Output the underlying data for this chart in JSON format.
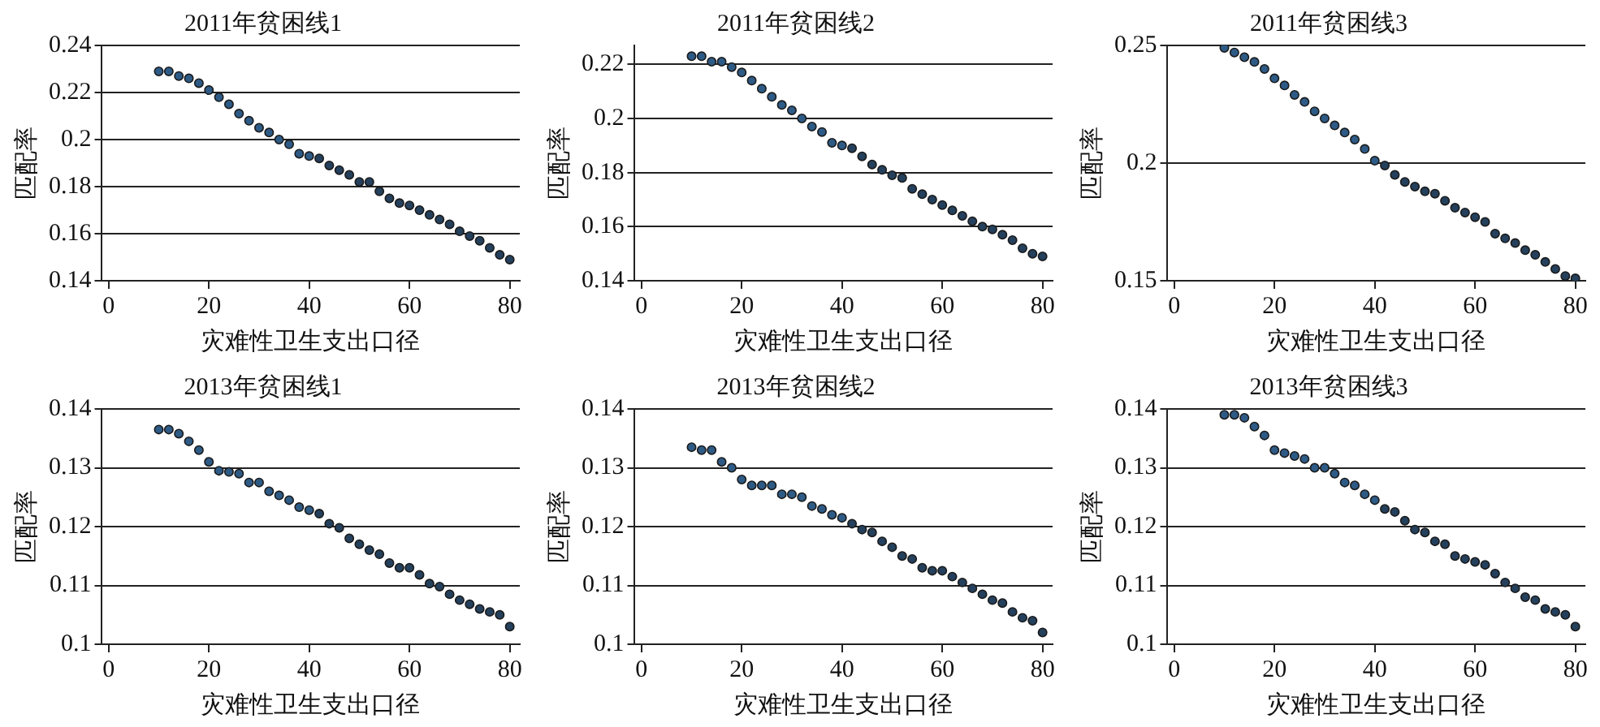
{
  "chart_data": [
    {
      "type": "scatter",
      "title": "2011年贫困线1",
      "xlabel": "灾难性卫生支出口径",
      "ylabel": "匹配率",
      "xlim": [
        -1.5,
        82
      ],
      "xticks": [
        0,
        20,
        40,
        60,
        80
      ],
      "ylim": [
        0.14,
        0.24
      ],
      "yticks": [
        0.14,
        0.16,
        0.18,
        0.2,
        0.22,
        0.24
      ],
      "grid": "y",
      "marker": "circle",
      "series": [
        {
          "color": "#2e5b86",
          "x": [
            10,
            12,
            14,
            16,
            18,
            20,
            22,
            24,
            26,
            28,
            30,
            32,
            34,
            36,
            38,
            40
          ],
          "values": [
            0.229,
            0.229,
            0.227,
            0.226,
            0.224,
            0.221,
            0.218,
            0.215,
            0.211,
            0.208,
            0.205,
            0.203,
            0.2,
            0.198,
            0.194,
            0.193
          ]
        },
        {
          "color": "#24405c",
          "x": [
            42,
            44,
            46,
            48,
            50,
            52,
            54,
            56,
            58,
            60,
            62,
            64,
            66,
            68,
            70,
            72,
            74,
            76,
            78,
            80
          ],
          "values": [
            0.192,
            0.189,
            0.187,
            0.185,
            0.182,
            0.182,
            0.178,
            0.175,
            0.173,
            0.172,
            0.17,
            0.168,
            0.166,
            0.164,
            0.161,
            0.159,
            0.157,
            0.154,
            0.151,
            0.149
          ]
        }
      ]
    },
    {
      "type": "scatter",
      "title": "2011年贫困线2",
      "xlabel": "灾难性卫生支出口径",
      "ylabel": "匹配率",
      "xlim": [
        -1.5,
        82
      ],
      "xticks": [
        0,
        20,
        40,
        60,
        80
      ],
      "ylim": [
        0.14,
        0.227
      ],
      "yticks": [
        0.14,
        0.16,
        0.18,
        0.2,
        0.22
      ],
      "grid": "y",
      "marker": "circle",
      "series": [
        {
          "color": "#2e5b86",
          "x": [
            10,
            12,
            14,
            16,
            18,
            20,
            22,
            24,
            26,
            28,
            30,
            32,
            34,
            36,
            38,
            40
          ],
          "values": [
            0.223,
            0.223,
            0.221,
            0.221,
            0.219,
            0.217,
            0.214,
            0.211,
            0.208,
            0.205,
            0.203,
            0.2,
            0.197,
            0.195,
            0.191,
            0.19
          ]
        },
        {
          "color": "#24405c",
          "x": [
            42,
            44,
            46,
            48,
            50,
            52,
            54,
            56,
            58,
            60,
            62,
            64,
            66,
            68,
            70,
            72,
            74,
            76,
            78,
            80
          ],
          "values": [
            0.189,
            0.186,
            0.183,
            0.181,
            0.179,
            0.178,
            0.174,
            0.172,
            0.17,
            0.168,
            0.166,
            0.164,
            0.162,
            0.16,
            0.159,
            0.157,
            0.155,
            0.152,
            0.15,
            0.149
          ]
        }
      ]
    },
    {
      "type": "scatter",
      "title": "2011年贫困线3",
      "xlabel": "灾难性卫生支出口径",
      "ylabel": "匹配率",
      "xlim": [
        -1.5,
        82
      ],
      "xticks": [
        0,
        20,
        40,
        60,
        80
      ],
      "ylim": [
        0.15,
        0.25
      ],
      "yticks": [
        0.15,
        0.2,
        0.25
      ],
      "grid": "y",
      "marker": "circle",
      "series": [
        {
          "color": "#2e5b86",
          "x": [
            10,
            12,
            14,
            16,
            18,
            20,
            22,
            24,
            26,
            28,
            30,
            32,
            34,
            36,
            38,
            40
          ],
          "values": [
            0.249,
            0.247,
            0.245,
            0.243,
            0.24,
            0.236,
            0.233,
            0.229,
            0.226,
            0.222,
            0.219,
            0.216,
            0.213,
            0.21,
            0.206,
            0.201
          ]
        },
        {
          "color": "#24405c",
          "x": [
            42,
            44,
            46,
            48,
            50,
            52,
            54,
            56,
            58,
            60,
            62,
            64,
            66,
            68,
            70,
            72,
            74,
            76,
            78,
            80
          ],
          "values": [
            0.199,
            0.195,
            0.192,
            0.19,
            0.188,
            0.187,
            0.184,
            0.181,
            0.179,
            0.177,
            0.175,
            0.17,
            0.168,
            0.166,
            0.163,
            0.161,
            0.158,
            0.155,
            0.152,
            0.151
          ]
        }
      ]
    },
    {
      "type": "scatter",
      "title": "2013年贫困线1",
      "xlabel": "灾难性卫生支出口径",
      "ylabel": "匹配率",
      "xlim": [
        -1.5,
        82
      ],
      "xticks": [
        0,
        20,
        40,
        60,
        80
      ],
      "ylim": [
        0.1,
        0.14
      ],
      "yticks": [
        0.1,
        0.11,
        0.12,
        0.13,
        0.14
      ],
      "grid": "y",
      "marker": "circle",
      "series": [
        {
          "color": "#2e5b86",
          "x": [
            10,
            12,
            14,
            16,
            18,
            20,
            22,
            24,
            26,
            28,
            30,
            32,
            34,
            36,
            38,
            40
          ],
          "values": [
            0.1365,
            0.1365,
            0.1358,
            0.1345,
            0.133,
            0.131,
            0.1295,
            0.1293,
            0.129,
            0.1275,
            0.1275,
            0.126,
            0.1253,
            0.1245,
            0.1233,
            0.1228
          ]
        },
        {
          "color": "#24405c",
          "x": [
            42,
            44,
            46,
            48,
            50,
            52,
            54,
            56,
            58,
            60,
            62,
            64,
            66,
            68,
            70,
            72,
            74,
            76,
            78,
            80
          ],
          "values": [
            0.1222,
            0.1205,
            0.1198,
            0.118,
            0.117,
            0.116,
            0.1153,
            0.1138,
            0.113,
            0.113,
            0.1118,
            0.1103,
            0.1098,
            0.1085,
            0.1075,
            0.1068,
            0.106,
            0.1055,
            0.105,
            0.103
          ]
        }
      ]
    },
    {
      "type": "scatter",
      "title": "2013年贫困线2",
      "xlabel": "灾难性卫生支出口径",
      "ylabel": "匹配率",
      "xlim": [
        -1.5,
        82
      ],
      "xticks": [
        0,
        20,
        40,
        60,
        80
      ],
      "ylim": [
        0.1,
        0.14
      ],
      "yticks": [
        0.1,
        0.11,
        0.12,
        0.13,
        0.14
      ],
      "grid": "y",
      "marker": "circle",
      "series": [
        {
          "color": "#2e5b86",
          "x": [
            10,
            12,
            14,
            16,
            18,
            20,
            22,
            24,
            26,
            28,
            30,
            32,
            34,
            36,
            38,
            40
          ],
          "values": [
            0.1335,
            0.133,
            0.133,
            0.131,
            0.13,
            0.128,
            0.127,
            0.127,
            0.127,
            0.1255,
            0.1255,
            0.125,
            0.1235,
            0.123,
            0.122,
            0.1215
          ]
        },
        {
          "color": "#24405c",
          "x": [
            42,
            44,
            46,
            48,
            50,
            52,
            54,
            56,
            58,
            60,
            62,
            64,
            66,
            68,
            70,
            72,
            74,
            76,
            78,
            80
          ],
          "values": [
            0.1205,
            0.1195,
            0.119,
            0.1175,
            0.1165,
            0.115,
            0.1145,
            0.113,
            0.1125,
            0.1125,
            0.1115,
            0.1105,
            0.1095,
            0.1085,
            0.1075,
            0.107,
            0.1055,
            0.1045,
            0.104,
            0.102
          ]
        }
      ]
    },
    {
      "type": "scatter",
      "title": "2013年贫困线3",
      "xlabel": "灾难性卫生支出口径",
      "ylabel": "匹配率",
      "xlim": [
        -1.5,
        82
      ],
      "xticks": [
        0,
        20,
        40,
        60,
        80
      ],
      "ylim": [
        0.1,
        0.14
      ],
      "yticks": [
        0.1,
        0.11,
        0.12,
        0.13,
        0.14
      ],
      "grid": "y",
      "marker": "circle",
      "series": [
        {
          "color": "#2e5b86",
          "x": [
            10,
            12,
            14,
            16,
            18,
            20,
            22,
            24,
            26,
            28,
            30,
            32,
            34,
            36,
            38,
            40
          ],
          "values": [
            0.139,
            0.139,
            0.1385,
            0.137,
            0.1355,
            0.133,
            0.1325,
            0.132,
            0.1315,
            0.13,
            0.13,
            0.129,
            0.1275,
            0.127,
            0.1255,
            0.1245
          ]
        },
        {
          "color": "#24405c",
          "x": [
            42,
            44,
            46,
            48,
            50,
            52,
            54,
            56,
            58,
            60,
            62,
            64,
            66,
            68,
            70,
            72,
            74,
            76,
            78,
            80
          ],
          "values": [
            0.123,
            0.1225,
            0.121,
            0.1195,
            0.119,
            0.1175,
            0.117,
            0.115,
            0.1145,
            0.114,
            0.1135,
            0.112,
            0.1105,
            0.1095,
            0.108,
            0.1075,
            0.106,
            0.1055,
            0.105,
            0.103
          ]
        }
      ]
    }
  ]
}
